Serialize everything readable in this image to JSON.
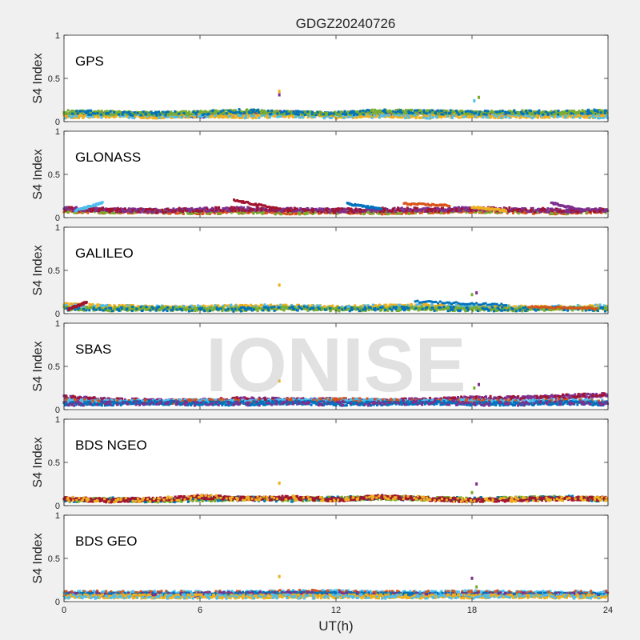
{
  "figure": {
    "title": "GDGZ20240726",
    "xlabel": "UT(h)",
    "watermark": "IONISE"
  },
  "colors": {
    "background": "#f0f0f0",
    "axes_bg": "#ffffff",
    "series": [
      "#0072BD",
      "#D95319",
      "#EDB120",
      "#7E2F8E",
      "#77AC30",
      "#4DBEEE",
      "#A2142F"
    ]
  },
  "chart_data": {
    "type": "scatter",
    "xlim": [
      0,
      24
    ],
    "ylim": [
      0,
      1
    ],
    "xticks": [
      0,
      6,
      12,
      18,
      24
    ],
    "yticks": [
      0,
      0.5,
      1
    ],
    "xtick_labels": [
      "0",
      "6",
      "12",
      "18",
      "24"
    ],
    "ytick_labels": [
      "0",
      "0.5",
      "1"
    ],
    "ylabel": "S4 Index",
    "grid": false,
    "marker": "small square",
    "panels": [
      {
        "name": "GPS",
        "series": [
          {
            "x": [
              0,
              2,
              4,
              6,
              8,
              10,
              12,
              14,
              16,
              18,
              20,
              22,
              24
            ],
            "y": [
              0.08,
              0.09,
              0.08,
              0.07,
              0.09,
              0.1,
              0.08,
              0.09,
              0.1,
              0.08,
              0.09,
              0.08,
              0.08
            ]
          },
          {
            "x": [
              0,
              2,
              4,
              6,
              8,
              10,
              12,
              14,
              16,
              18,
              20,
              22,
              24
            ],
            "y": [
              0.06,
              0.07,
              0.06,
              0.07,
              0.06,
              0.07,
              0.06,
              0.07,
              0.06,
              0.07,
              0.06,
              0.07,
              0.06
            ]
          },
          {
            "x": [
              0,
              2,
              4,
              6,
              8,
              10,
              12,
              14,
              16,
              18,
              20,
              22,
              24
            ],
            "y": [
              0.11,
              0.1,
              0.09,
              0.1,
              0.12,
              0.1,
              0.09,
              0.12,
              0.11,
              0.1,
              0.11,
              0.1,
              0.12
            ]
          }
        ],
        "outliers": [
          {
            "x": 9.5,
            "y": 0.35
          },
          {
            "x": 9.5,
            "y": 0.31
          },
          {
            "x": 18.3,
            "y": 0.28
          },
          {
            "x": 18.1,
            "y": 0.24
          }
        ]
      },
      {
        "name": "GLONASS",
        "series": [
          {
            "x": [
              0,
              2,
              4,
              6,
              8,
              10,
              12,
              14,
              16,
              18,
              20,
              22,
              24
            ],
            "y": [
              0.08,
              0.07,
              0.07,
              0.06,
              0.07,
              0.06,
              0.07,
              0.06,
              0.07,
              0.08,
              0.07,
              0.06,
              0.08
            ]
          },
          {
            "x": [
              0,
              2,
              4,
              6,
              8,
              10,
              12,
              14,
              16,
              18,
              20,
              22,
              24
            ],
            "y": [
              0.1,
              0.09,
              0.08,
              0.09,
              0.1,
              0.09,
              0.08,
              0.09,
              0.09,
              0.1,
              0.09,
              0.08,
              0.09
            ]
          }
        ],
        "arcs": [
          {
            "x0": 0.5,
            "x1": 1.7,
            "y0": 0.08,
            "y1": 0.17
          },
          {
            "x0": 7.5,
            "x1": 9.5,
            "y0": 0.2,
            "y1": 0.1
          },
          {
            "x0": 12.5,
            "x1": 14.0,
            "y0": 0.16,
            "y1": 0.1
          },
          {
            "x0": 15.0,
            "x1": 17.0,
            "y0": 0.16,
            "y1": 0.14
          },
          {
            "x0": 18.0,
            "x1": 19.5,
            "y0": 0.12,
            "y1": 0.08
          },
          {
            "x0": 21.5,
            "x1": 23.0,
            "y0": 0.17,
            "y1": 0.08
          }
        ]
      },
      {
        "name": "GALILEO",
        "series": [
          {
            "x": [
              0,
              2,
              4,
              6,
              8,
              10,
              12,
              14,
              16,
              18,
              20,
              22,
              24
            ],
            "y": [
              0.1,
              0.08,
              0.07,
              0.07,
              0.08,
              0.08,
              0.07,
              0.08,
              0.09,
              0.08,
              0.07,
              0.07,
              0.08
            ]
          },
          {
            "x": [
              0,
              2,
              4,
              6,
              8,
              10,
              12,
              14,
              16,
              18,
              20,
              22,
              24
            ],
            "y": [
              0.06,
              0.05,
              0.06,
              0.05,
              0.05,
              0.06,
              0.05,
              0.05,
              0.06,
              0.05,
              0.05,
              0.06,
              0.05
            ]
          }
        ],
        "arcs": [
          {
            "x0": 0.2,
            "x1": 1.0,
            "y0": 0.05,
            "y1": 0.13
          },
          {
            "x0": 15.5,
            "x1": 19.5,
            "y0": 0.14,
            "y1": 0.1
          },
          {
            "x0": 20.5,
            "x1": 23.5,
            "y0": 0.08,
            "y1": 0.06
          }
        ],
        "outliers": [
          {
            "x": 9.5,
            "y": 0.33
          },
          {
            "x": 18.2,
            "y": 0.24
          },
          {
            "x": 18.0,
            "y": 0.22
          }
        ]
      },
      {
        "name": "SBAS",
        "series": [
          {
            "x": [
              0,
              2,
              4,
              6,
              8,
              10,
              12,
              14,
              16,
              18,
              20,
              22,
              24
            ],
            "y": [
              0.14,
              0.11,
              0.1,
              0.1,
              0.12,
              0.11,
              0.11,
              0.1,
              0.11,
              0.13,
              0.13,
              0.15,
              0.17
            ]
          },
          {
            "x": [
              0,
              2,
              4,
              6,
              8,
              10,
              12,
              14,
              16,
              18,
              20,
              22,
              24
            ],
            "y": [
              0.1,
              0.09,
              0.09,
              0.1,
              0.09,
              0.1,
              0.11,
              0.1,
              0.09,
              0.1,
              0.09,
              0.1,
              0.09
            ]
          },
          {
            "x": [
              0,
              2,
              4,
              6,
              8,
              10,
              12,
              14,
              16,
              18,
              20,
              22,
              24
            ],
            "y": [
              0.07,
              0.07,
              0.08,
              0.07,
              0.07,
              0.08,
              0.07,
              0.07,
              0.08,
              0.07,
              0.07,
              0.08,
              0.07
            ]
          }
        ],
        "outliers": [
          {
            "x": 9.5,
            "y": 0.33
          },
          {
            "x": 18.3,
            "y": 0.29
          },
          {
            "x": 18.1,
            "y": 0.25
          }
        ]
      },
      {
        "name": "BDS NGEO",
        "series": [
          {
            "x": [
              0,
              2,
              4,
              6,
              8,
              10,
              12,
              14,
              16,
              18,
              20,
              22,
              24
            ],
            "y": [
              0.06,
              0.07,
              0.06,
              0.07,
              0.08,
              0.07,
              0.08,
              0.09,
              0.08,
              0.07,
              0.08,
              0.09,
              0.07
            ]
          },
          {
            "x": [
              0,
              2,
              4,
              6,
              8,
              10,
              12,
              14,
              16,
              18,
              20,
              22,
              24
            ],
            "y": [
              0.08,
              0.06,
              0.07,
              0.1,
              0.08,
              0.09,
              0.07,
              0.1,
              0.08,
              0.06,
              0.07,
              0.08,
              0.08
            ]
          }
        ],
        "outliers": [
          {
            "x": 9.5,
            "y": 0.26
          },
          {
            "x": 18.2,
            "y": 0.25
          },
          {
            "x": 18.0,
            "y": 0.15
          }
        ]
      },
      {
        "name": "BDS GEO",
        "series": [
          {
            "x": [
              0,
              2,
              4,
              6,
              8,
              10,
              12,
              14,
              16,
              18,
              20,
              22,
              24
            ],
            "y": [
              0.1,
              0.1,
              0.1,
              0.1,
              0.1,
              0.11,
              0.11,
              0.1,
              0.1,
              0.11,
              0.1,
              0.1,
              0.1
            ]
          },
          {
            "x": [
              0,
              2,
              4,
              6,
              8,
              10,
              12,
              14,
              16,
              18,
              20,
              22,
              24
            ],
            "y": [
              0.08,
              0.08,
              0.08,
              0.08,
              0.09,
              0.09,
              0.09,
              0.08,
              0.08,
              0.08,
              0.08,
              0.08,
              0.08
            ]
          },
          {
            "x": [
              0,
              2,
              4,
              6,
              8,
              10,
              12,
              14,
              16,
              18,
              20,
              22,
              24
            ],
            "y": [
              0.06,
              0.06,
              0.06,
              0.06,
              0.06,
              0.06,
              0.06,
              0.06,
              0.06,
              0.06,
              0.06,
              0.06,
              0.06
            ]
          }
        ],
        "outliers": [
          {
            "x": 9.5,
            "y": 0.29
          },
          {
            "x": 18.0,
            "y": 0.27
          },
          {
            "x": 18.2,
            "y": 0.17
          }
        ]
      }
    ]
  }
}
